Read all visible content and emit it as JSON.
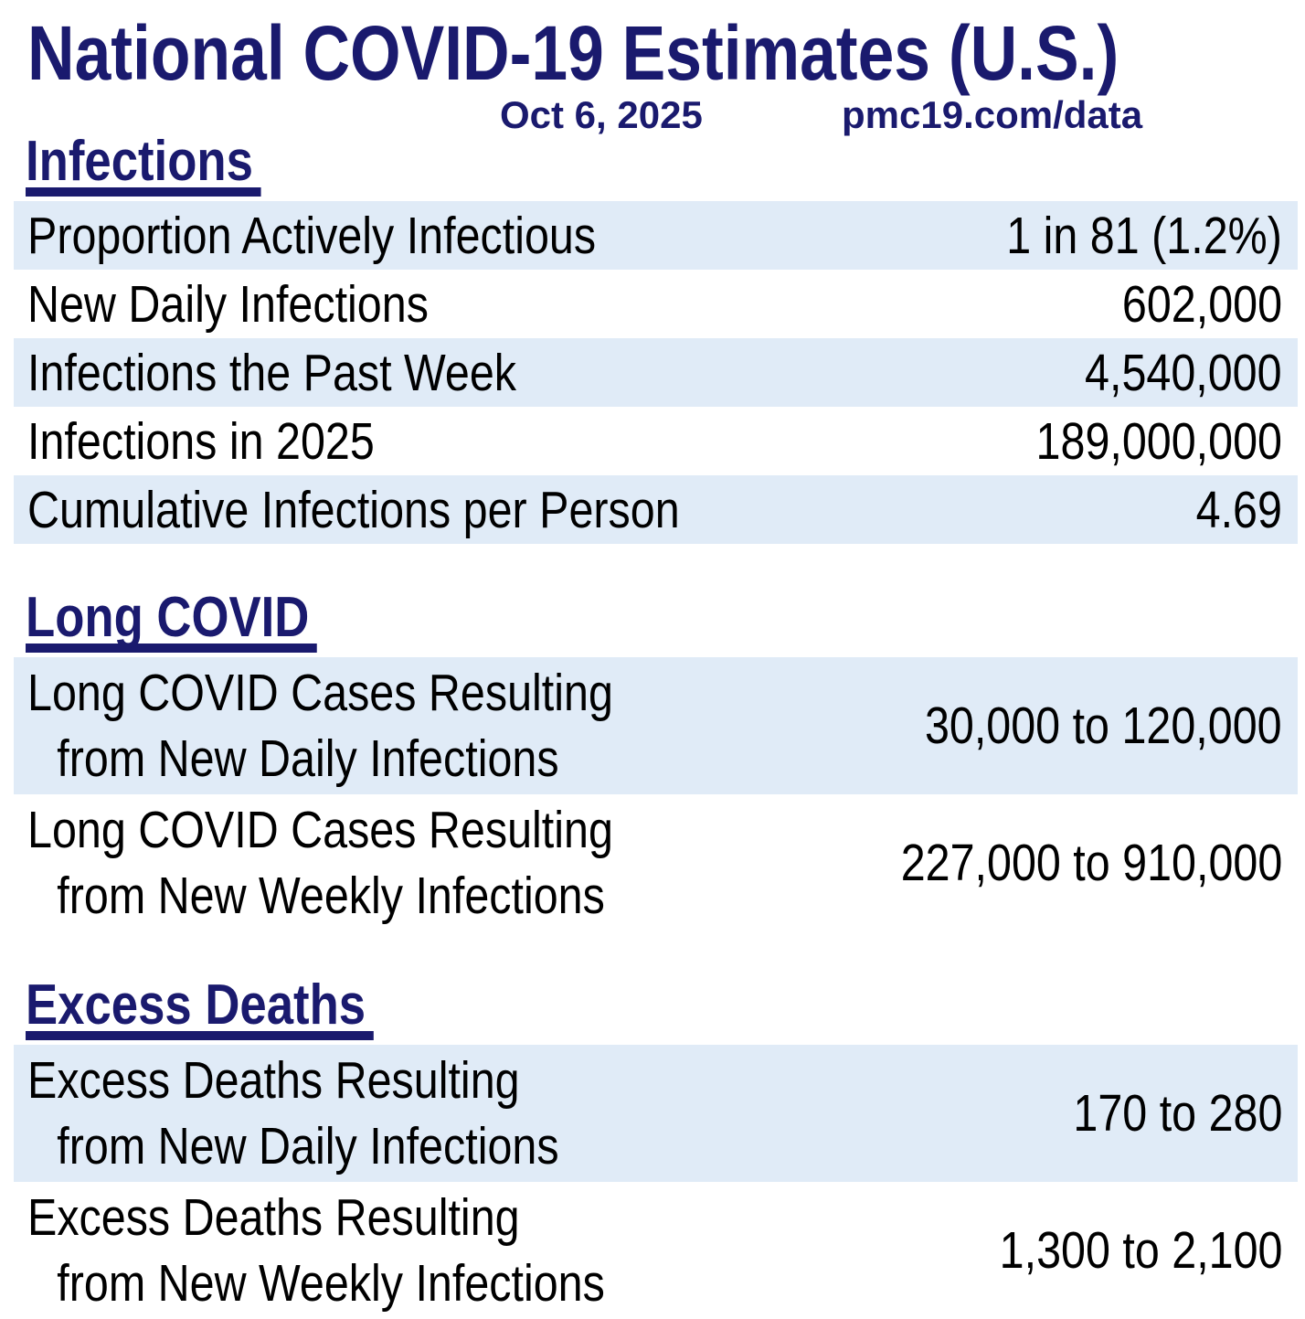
{
  "page": {
    "title": "National COVID-19 Estimates (U.S.)",
    "date": "Oct 6, 2025",
    "source": "pmc19.com/data"
  },
  "sections": [
    {
      "heading": "Infections",
      "rows": [
        {
          "label": "Proportion Actively Infectious",
          "value": "1 in 81 (1.2%)",
          "highlighted": true
        },
        {
          "label": "New Daily Infections",
          "value": "602,000",
          "highlighted": false
        },
        {
          "label": "Infections the Past Week",
          "value": "4,540,000",
          "highlighted": true
        },
        {
          "label": "Infections in 2025",
          "value": "189,000,000",
          "highlighted": false
        },
        {
          "label": "Cumulative Infections per Person",
          "value": "4.69",
          "highlighted": true
        }
      ]
    },
    {
      "heading": "Long COVID",
      "rows": [
        {
          "label_line1": "Long COVID Cases Resulting",
          "label_line2": "from New Daily Infections",
          "value": "30,000 to 120,000",
          "highlighted": true
        },
        {
          "label_line1": "Long COVID Cases Resulting",
          "label_line2": "from New Weekly Infections",
          "value": "227,000 to 910,000",
          "highlighted": false
        }
      ]
    },
    {
      "heading": "Excess Deaths",
      "rows": [
        {
          "label_line1": "Excess Deaths Resulting",
          "label_line2": "from New Daily Infections",
          "value": "170 to 280",
          "highlighted": true
        },
        {
          "label_line1": "Excess Deaths Resulting",
          "label_line2": "from New Weekly Infections",
          "value": "1,300 to 2,100",
          "highlighted": false
        }
      ]
    }
  ],
  "colors": {
    "navy": "#1a1a6e",
    "row_highlight": "#e0ebf7",
    "text": "#000000"
  },
  "chart_data": {
    "type": "table",
    "title": "National COVID-19 Estimates (U.S.)",
    "date": "Oct 6, 2025",
    "source": "pmc19.com/data",
    "sections": [
      {
        "name": "Infections",
        "rows": [
          [
            "Proportion Actively Infectious",
            "1 in 81 (1.2%)"
          ],
          [
            "New Daily Infections",
            "602,000"
          ],
          [
            "Infections the Past Week",
            "4,540,000"
          ],
          [
            "Infections in 2025",
            "189,000,000"
          ],
          [
            "Cumulative Infections per Person",
            "4.69"
          ]
        ]
      },
      {
        "name": "Long COVID",
        "rows": [
          [
            "Long COVID Cases Resulting from New Daily Infections",
            "30,000 to 120,000"
          ],
          [
            "Long COVID Cases Resulting from New Weekly Infections",
            "227,000 to 910,000"
          ]
        ]
      },
      {
        "name": "Excess Deaths",
        "rows": [
          [
            "Excess Deaths Resulting from New Daily Infections",
            "170 to 280"
          ],
          [
            "Excess Deaths Resulting from New Weekly Infections",
            "1,300 to 2,100"
          ]
        ]
      }
    ]
  }
}
